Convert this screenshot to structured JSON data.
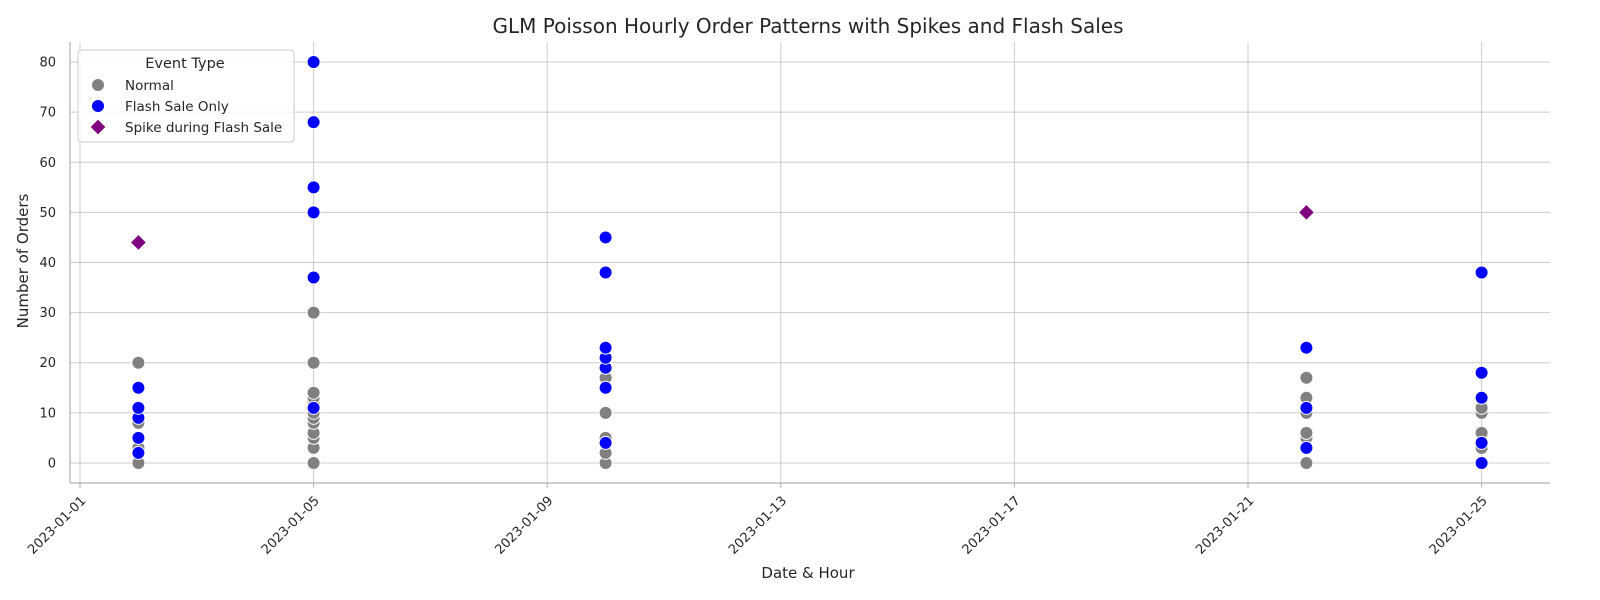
{
  "chart_data": {
    "type": "scatter",
    "title": "GLM Poisson Hourly Order Patterns with Spikes and Flash Sales",
    "xlabel": "Date & Hour",
    "ylabel": "Number of Orders",
    "x_axis_type": "date",
    "xlim": [
      "2023-01-01",
      "2023-01-26"
    ],
    "ylim": [
      -4,
      84
    ],
    "xticks": [
      "2023-01-01",
      "2023-01-05",
      "2023-01-09",
      "2023-01-13",
      "2023-01-17",
      "2023-01-21",
      "2023-01-25"
    ],
    "yticks": [
      0,
      10,
      20,
      30,
      40,
      50,
      60,
      70,
      80
    ],
    "grid": true,
    "legend": {
      "title": "Event Type",
      "position": "top-left"
    },
    "series": [
      {
        "name": "Normal",
        "color": "#808080",
        "marker": "circle",
        "points": [
          {
            "x": "2023-01-02",
            "y": 0
          },
          {
            "x": "2023-01-02",
            "y": 3
          },
          {
            "x": "2023-01-02",
            "y": 8
          },
          {
            "x": "2023-01-02",
            "y": 20
          },
          {
            "x": "2023-01-05",
            "y": 0
          },
          {
            "x": "2023-01-05",
            "y": 3
          },
          {
            "x": "2023-01-05",
            "y": 5
          },
          {
            "x": "2023-01-05",
            "y": 6
          },
          {
            "x": "2023-01-05",
            "y": 8
          },
          {
            "x": "2023-01-05",
            "y": 9
          },
          {
            "x": "2023-01-05",
            "y": 10
          },
          {
            "x": "2023-01-05",
            "y": 12
          },
          {
            "x": "2023-01-05",
            "y": 13
          },
          {
            "x": "2023-01-05",
            "y": 14
          },
          {
            "x": "2023-01-05",
            "y": 20
          },
          {
            "x": "2023-01-05",
            "y": 30
          },
          {
            "x": "2023-01-10",
            "y": 0
          },
          {
            "x": "2023-01-10",
            "y": 2
          },
          {
            "x": "2023-01-10",
            "y": 5
          },
          {
            "x": "2023-01-10",
            "y": 10
          },
          {
            "x": "2023-01-10",
            "y": 17
          },
          {
            "x": "2023-01-22",
            "y": 0
          },
          {
            "x": "2023-01-22",
            "y": 5
          },
          {
            "x": "2023-01-22",
            "y": 6
          },
          {
            "x": "2023-01-22",
            "y": 10
          },
          {
            "x": "2023-01-22",
            "y": 13
          },
          {
            "x": "2023-01-22",
            "y": 17
          },
          {
            "x": "2023-01-25",
            "y": 3
          },
          {
            "x": "2023-01-25",
            "y": 6
          },
          {
            "x": "2023-01-25",
            "y": 10
          },
          {
            "x": "2023-01-25",
            "y": 11
          }
        ]
      },
      {
        "name": "Flash Sale Only",
        "color": "#0000ff",
        "marker": "circle",
        "points": [
          {
            "x": "2023-01-02",
            "y": 2
          },
          {
            "x": "2023-01-02",
            "y": 5
          },
          {
            "x": "2023-01-02",
            "y": 9
          },
          {
            "x": "2023-01-02",
            "y": 11
          },
          {
            "x": "2023-01-02",
            "y": 15
          },
          {
            "x": "2023-01-05",
            "y": 11
          },
          {
            "x": "2023-01-05",
            "y": 37
          },
          {
            "x": "2023-01-05",
            "y": 50
          },
          {
            "x": "2023-01-05",
            "y": 55
          },
          {
            "x": "2023-01-05",
            "y": 68
          },
          {
            "x": "2023-01-05",
            "y": 80
          },
          {
            "x": "2023-01-10",
            "y": 4
          },
          {
            "x": "2023-01-10",
            "y": 15
          },
          {
            "x": "2023-01-10",
            "y": 19
          },
          {
            "x": "2023-01-10",
            "y": 21
          },
          {
            "x": "2023-01-10",
            "y": 23
          },
          {
            "x": "2023-01-10",
            "y": 38
          },
          {
            "x": "2023-01-10",
            "y": 45
          },
          {
            "x": "2023-01-22",
            "y": 3
          },
          {
            "x": "2023-01-22",
            "y": 11
          },
          {
            "x": "2023-01-22",
            "y": 23
          },
          {
            "x": "2023-01-25",
            "y": 0
          },
          {
            "x": "2023-01-25",
            "y": 4
          },
          {
            "x": "2023-01-25",
            "y": 13
          },
          {
            "x": "2023-01-25",
            "y": 18
          },
          {
            "x": "2023-01-25",
            "y": 38
          }
        ]
      },
      {
        "name": "Spike during Flash Sale",
        "color": "#800080",
        "marker": "diamond",
        "points": [
          {
            "x": "2023-01-02",
            "y": 44
          },
          {
            "x": "2023-01-22",
            "y": 50
          }
        ]
      }
    ]
  }
}
